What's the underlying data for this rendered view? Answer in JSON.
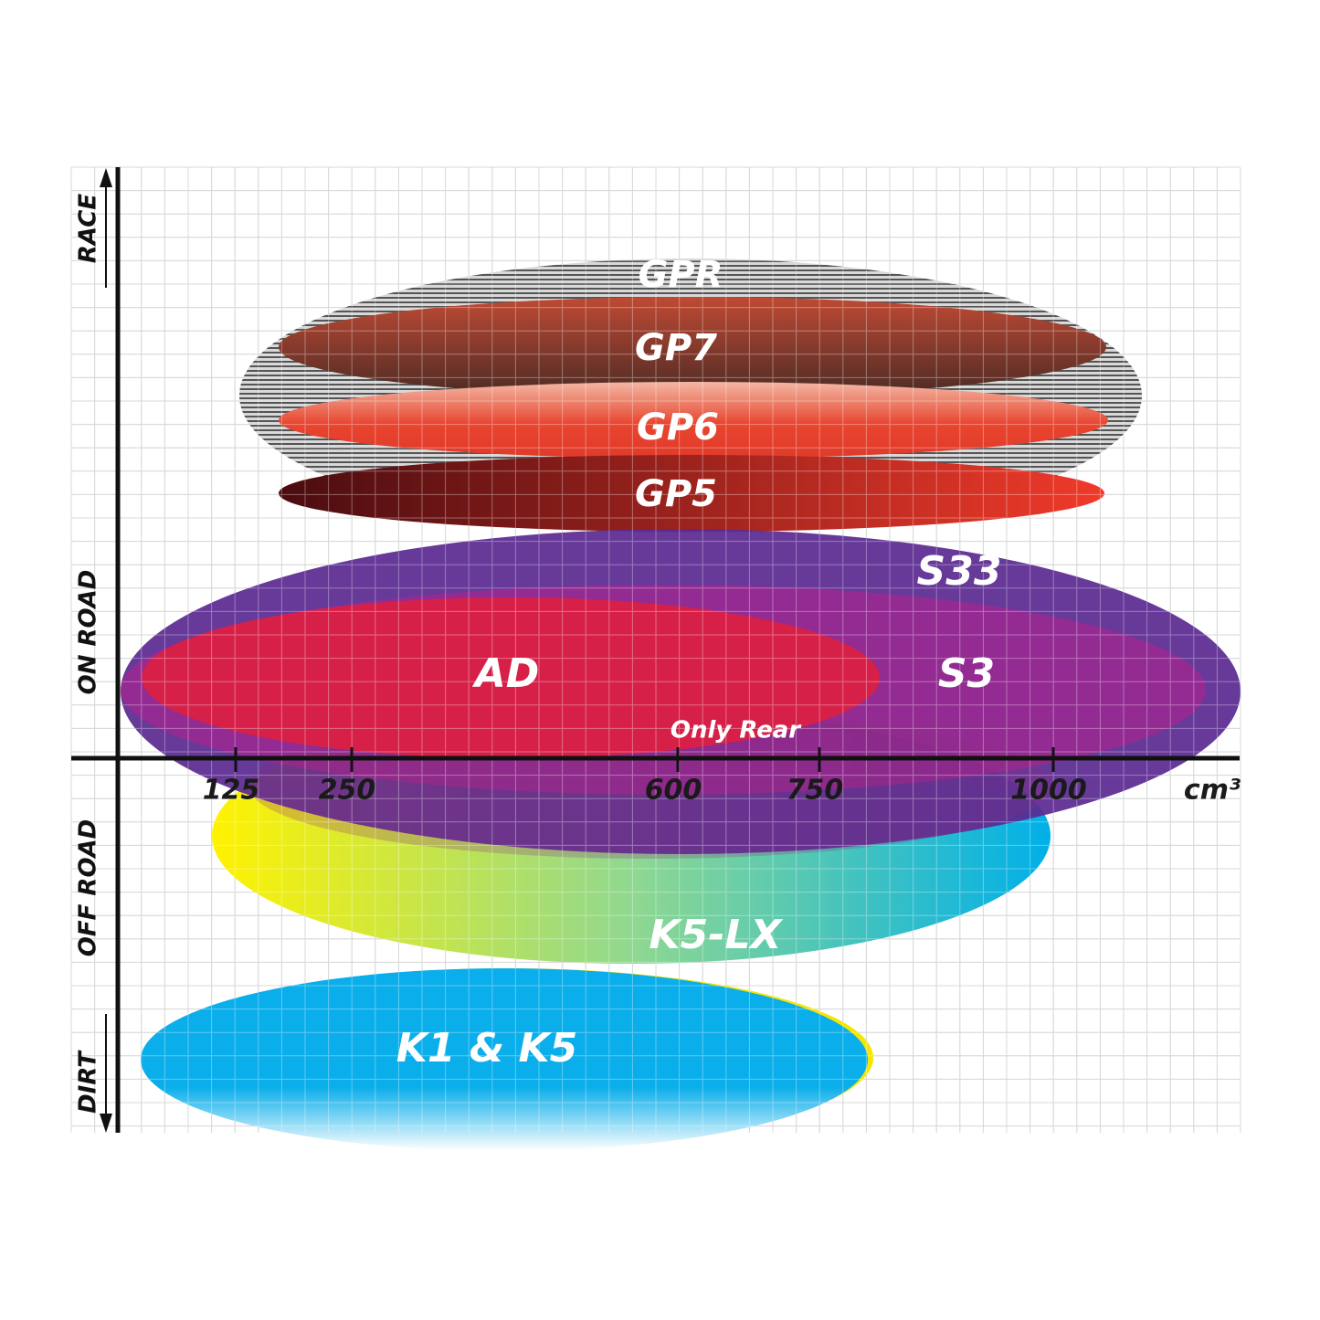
{
  "chart_data": {
    "type": "positioning",
    "xlabel": "cm³",
    "x_ticks": [
      "125",
      "250",
      "600",
      "750",
      "1000"
    ],
    "y_categories": [
      "RACE",
      "ON ROAD",
      "OFF ROAD",
      "DIRT"
    ],
    "grid": true,
    "series": [
      {
        "name": "GPR",
        "cc_range": [
          130,
          1095
        ],
        "color": "#9a9a9a"
      },
      {
        "name": "GP7",
        "cc_range": [
          170,
          1060
        ],
        "color": "#8a3422"
      },
      {
        "name": "GP6",
        "cc_range": [
          170,
          1060
        ],
        "color": "#e8452f"
      },
      {
        "name": "GP5",
        "cc_range": [
          170,
          1055
        ],
        "color": "#c8231b"
      },
      {
        "name": "S33",
        "cc_range": [
          0,
          1200
        ],
        "color": "#5b2a91"
      },
      {
        "name": "S3",
        "cc_range": [
          0,
          1165
        ],
        "color": "#a3238f"
      },
      {
        "name": "AD",
        "cc_range": [
          25,
          815
        ],
        "color": "#dc1f42"
      },
      {
        "name": "Only Rear",
        "cc_range": [
          100,
          1000
        ],
        "color": "#8a2a80"
      },
      {
        "name": "K5-LX",
        "cc_range": [
          100,
          1000
        ],
        "color": "#2ab8d8"
      },
      {
        "name": "K1 & K5",
        "cc_range": [
          25,
          805
        ],
        "color": "#0aaeea"
      }
    ]
  }
}
